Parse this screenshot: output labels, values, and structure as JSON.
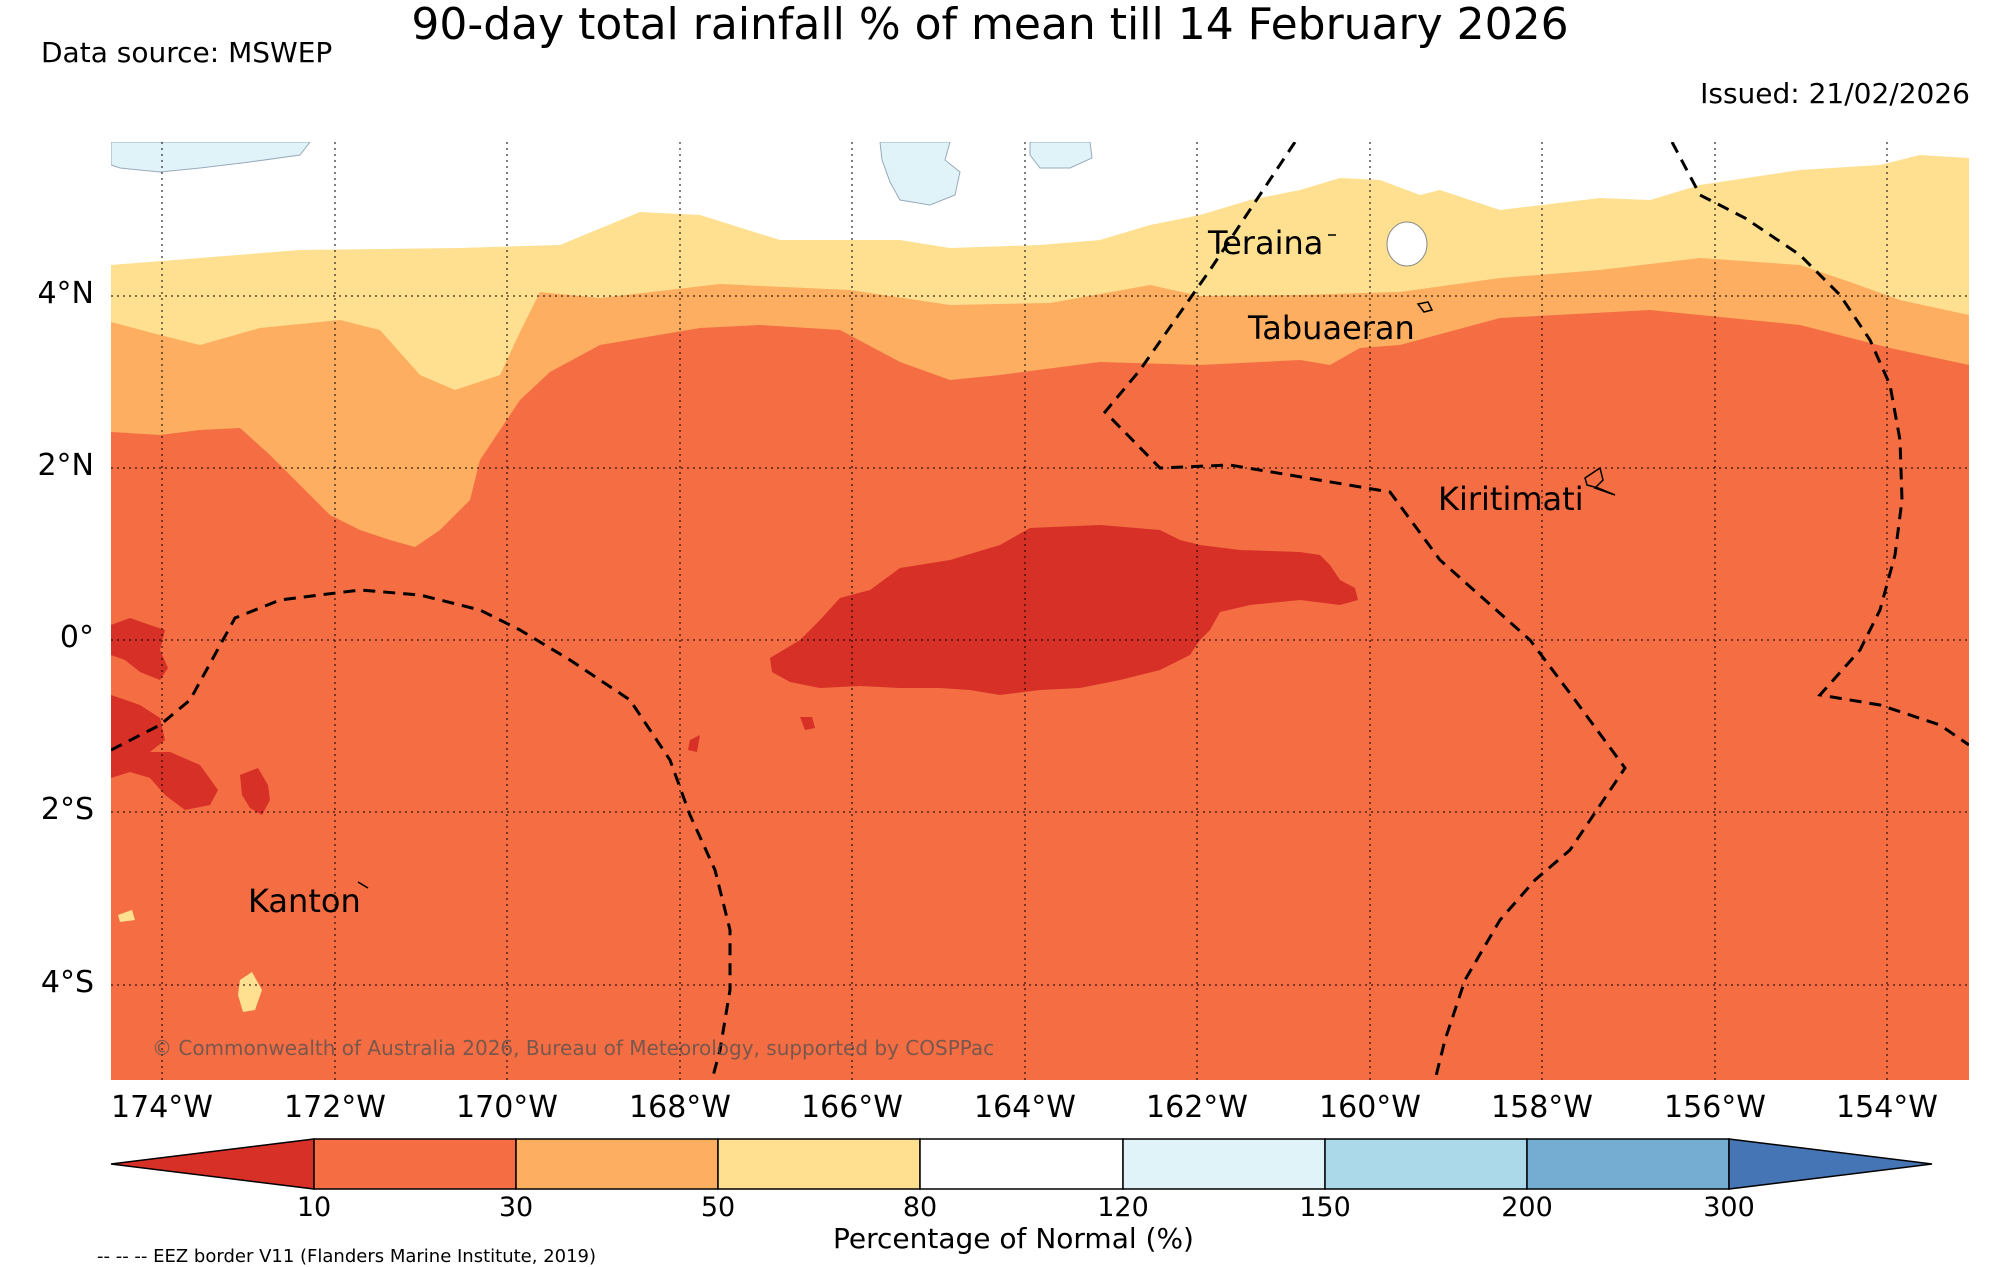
{
  "title": "90-day total rainfall % of mean till 14 February 2026",
  "data_source": "Data source: MSWEP",
  "issued": "Issued: 21/02/2026",
  "copyright": "© Commonwealth of Australia 2026, Bureau of Meteorology, supported by COSPPac",
  "eez_note": "-- -- -- EEZ border V11 (Flanders Marine Institute, 2019)",
  "lat_labels": [
    "4°N",
    "2°N",
    "0°",
    "2°S",
    "4°S"
  ],
  "lon_labels": [
    "174°W",
    "172°W",
    "170°W",
    "168°W",
    "166°W",
    "164°W",
    "162°W",
    "160°W",
    "158°W",
    "156°W",
    "154°W"
  ],
  "places": [
    "Teraina",
    "Tabuaeran",
    "Kiritimati",
    "Kanton"
  ],
  "colorbar": {
    "title": "Percentage of Normal (%)",
    "ticks": [
      "10",
      "30",
      "50",
      "80",
      "120",
      "150",
      "200",
      "300"
    ],
    "colors": [
      "#d73027",
      "#f46d43",
      "#fdae61",
      "#fee090",
      "#ffffff",
      "#e0f3f8",
      "#abd9e9",
      "#74add1",
      "#4575b4"
    ]
  },
  "chart_data": {
    "type": "map",
    "title": "90-day total rainfall % of mean till 14 February 2026",
    "variable": "Percentage of Normal (%)",
    "bins": [
      "<10",
      "10-30",
      "30-50",
      "50-80",
      "80-120",
      "120-150",
      "150-200",
      "200-300",
      ">300"
    ],
    "lon_range": [
      "174.6°W",
      "153.0°W"
    ],
    "lat_range": [
      "5.1°S",
      "5.8°N"
    ],
    "dominant_bin": "10-30"
  }
}
